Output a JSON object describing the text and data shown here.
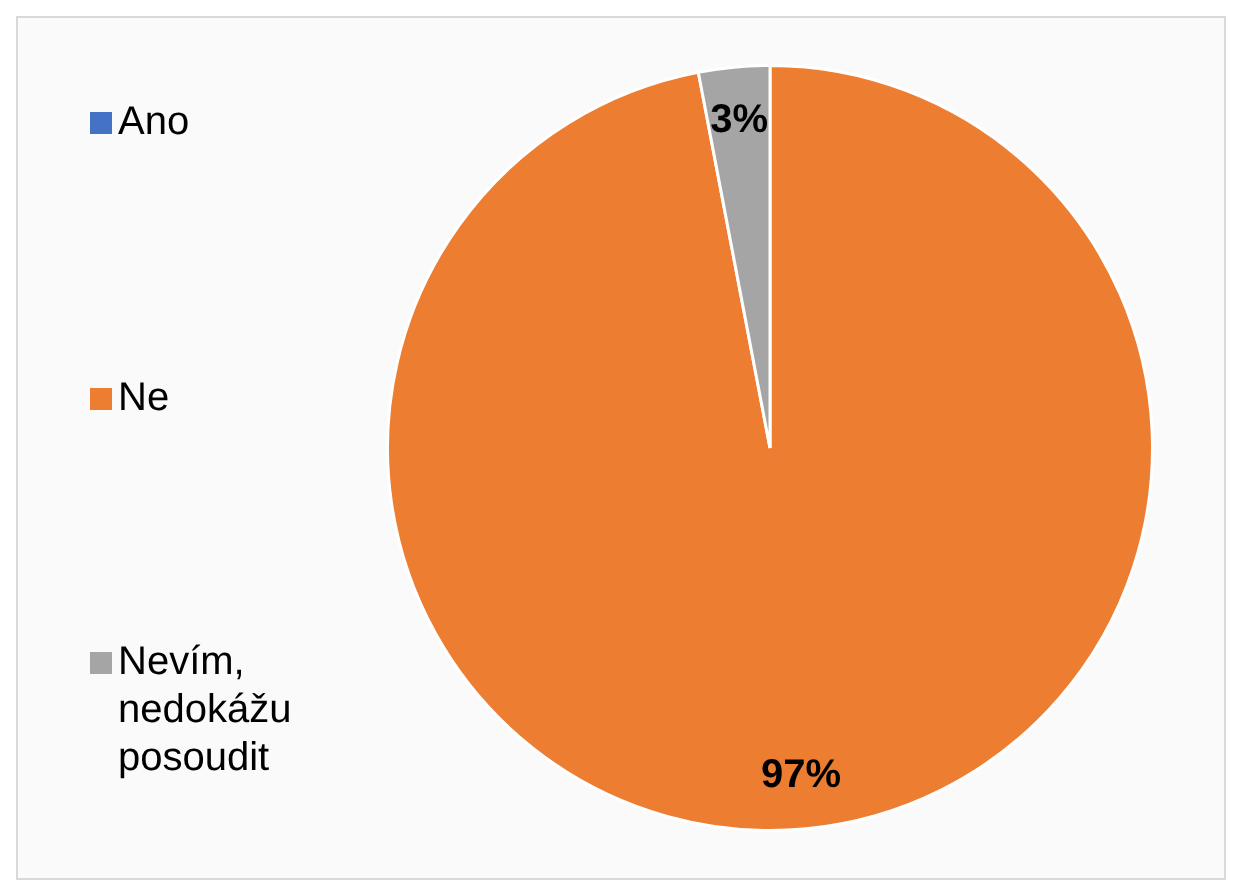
{
  "chart_data": {
    "type": "pie",
    "categories": [
      "Ano",
      "Ne",
      "Nevím, nedokážu posoudit"
    ],
    "values": [
      0,
      97,
      3
    ],
    "colors": [
      "#4472c4",
      "#ed7d31",
      "#a5a5a5"
    ],
    "value_labels": [
      null,
      "97%",
      "3%"
    ],
    "legend": "left"
  }
}
